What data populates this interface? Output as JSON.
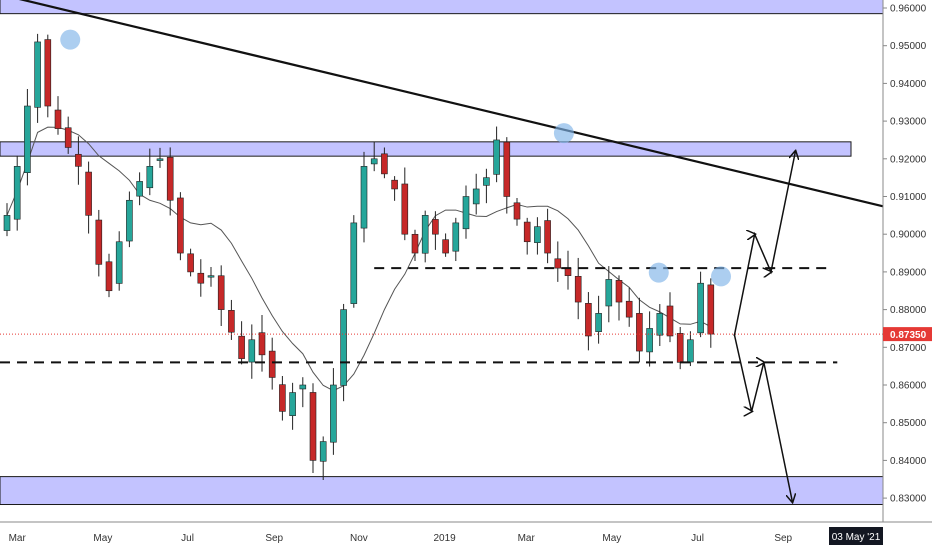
{
  "chart_data": {
    "type": "candlestick",
    "title": "",
    "xlabel": "",
    "ylabel": "",
    "ylim": [
      0.8238,
      0.965
    ],
    "y_ticks": [
      "0.96000",
      "0.95000",
      "0.94000",
      "0.93000",
      "0.92000",
      "0.91000",
      "0.90000",
      "0.89000",
      "0.88000",
      "0.87000",
      "0.86000",
      "0.85000",
      "0.84000",
      "0.83000"
    ],
    "x_ticks": [
      {
        "label": "Mar",
        "idx": 1
      },
      {
        "label": "May",
        "idx": 9.4
      },
      {
        "label": "Jul",
        "idx": 17.7
      },
      {
        "label": "Sep",
        "idx": 26.2
      },
      {
        "label": "Nov",
        "idx": 34.5
      },
      {
        "label": "2019",
        "idx": 42.9
      },
      {
        "label": "Mar",
        "idx": 50.9
      },
      {
        "label": "May",
        "idx": 59.3
      },
      {
        "label": "Jul",
        "idx": 67.7
      },
      {
        "label": "Sep",
        "idx": 76.1
      }
    ],
    "date_badge": "03 May '21",
    "current_price": {
      "value": 0.8735,
      "label": "0.87350",
      "color": "#e53935"
    },
    "bull_color": "#26a69a",
    "bear_color": "#c62828",
    "close_series": [
      0.905,
      0.918,
      0.934,
      0.951,
      0.934,
      0.928,
      0.923,
      0.918,
      0.905,
      0.892,
      0.885,
      0.898,
      0.909,
      0.914,
      0.918,
      0.92,
      0.909,
      0.895,
      0.89,
      0.887,
      0.889,
      0.88,
      0.874,
      0.867,
      0.872,
      0.868,
      0.862,
      0.853,
      0.858,
      0.86,
      0.84,
      0.845,
      0.86,
      0.88,
      0.903,
      0.918,
      0.92,
      0.916,
      0.912,
      0.9,
      0.895,
      0.905,
      0.9,
      0.895,
      0.903,
      0.91,
      0.912,
      0.915,
      0.925,
      0.91,
      0.904,
      0.898,
      0.902,
      0.895,
      0.891,
      0.889,
      0.882,
      0.873,
      0.879,
      0.888,
      0.882,
      0.878,
      0.869,
      0.875,
      0.879,
      0.873,
      0.866,
      0.872,
      0.887,
      0.8735
    ],
    "zones": [
      {
        "name": "resistance-zone-top",
        "y0": 0.9585,
        "y1": 0.966
      },
      {
        "name": "resistance-zone-mid",
        "y0": 0.9207,
        "y1": 0.9245
      },
      {
        "name": "support-zone-bottom",
        "y0": 0.8283,
        "y1": 0.8357
      }
    ],
    "dashed_levels": [
      {
        "name": "upper-dashed-level",
        "y": 0.891,
        "x_from": 36.0,
        "x_to": 80.6
      },
      {
        "name": "lower-dashed-level",
        "y": 0.866,
        "x_from": 0,
        "x_to": 81.4
      }
    ],
    "trendline": {
      "from": {
        "x": -0.5,
        "y": 0.9635
      },
      "to": {
        "x": 86.5,
        "y": 0.907
      }
    },
    "circles": [
      {
        "x": 6.2,
        "y": 0.9516
      },
      {
        "x": 54.6,
        "y": 0.9268
      },
      {
        "x": 63.9,
        "y": 0.8898
      },
      {
        "x": 70.0,
        "y": 0.8888
      }
    ],
    "projection_paths": [
      {
        "name": "bullish-projection",
        "points": [
          [
            71.3,
            0.873
          ],
          [
            73.3,
            0.9
          ],
          [
            74.9,
            0.89
          ],
          [
            77.3,
            0.922
          ]
        ]
      },
      {
        "name": "bearish-projection",
        "points": [
          [
            71.3,
            0.8735
          ],
          [
            73.0,
            0.853
          ],
          [
            74.2,
            0.866
          ],
          [
            77.0,
            0.829
          ]
        ]
      }
    ]
  }
}
